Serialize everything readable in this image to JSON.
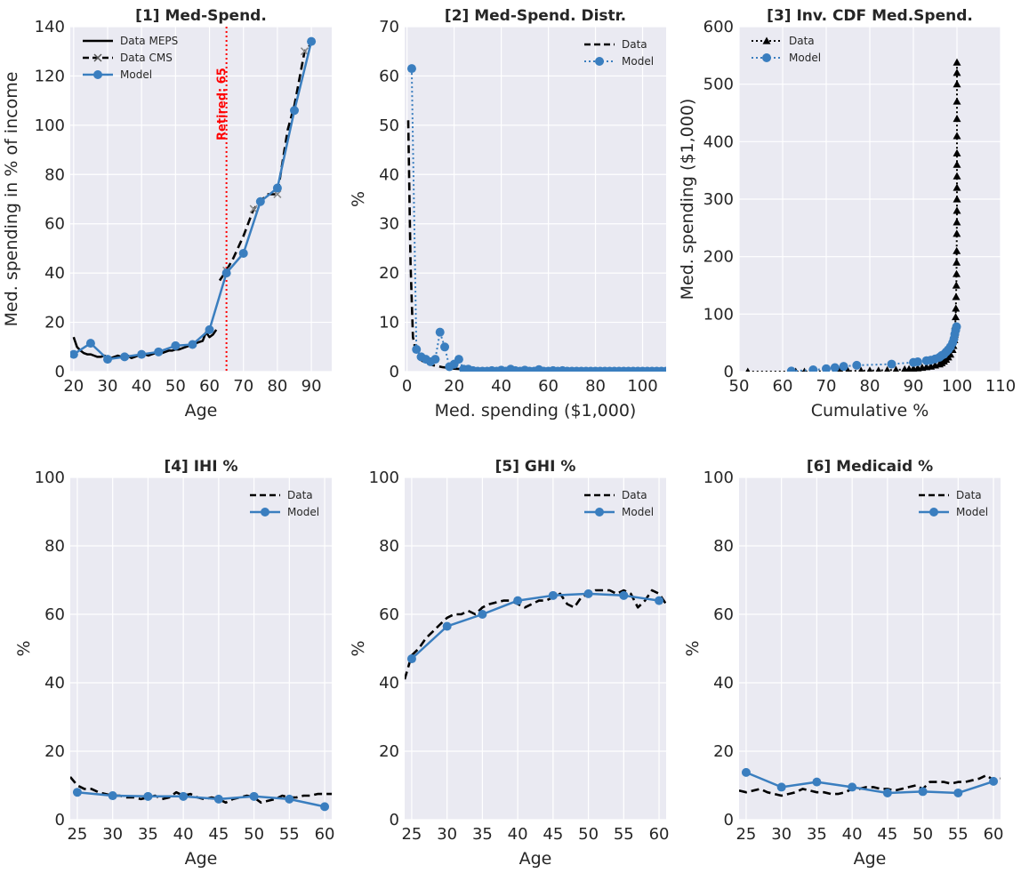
{
  "chart_data": [
    {
      "id": "p1",
      "type": "line",
      "title": "[1] Med-Spend.",
      "xlabel": "Age",
      "ylabel": "Med. spending in % of income",
      "xlim": [
        19,
        96
      ],
      "ylim": [
        0,
        140
      ],
      "xticks": [
        20,
        30,
        40,
        50,
        60,
        70,
        80,
        90
      ],
      "yticks": [
        0,
        20,
        40,
        60,
        80,
        100,
        120,
        140
      ],
      "grid": true,
      "legend_position": "top-left",
      "annotation": {
        "text": "Retired: 65",
        "x": 65
      },
      "series": [
        {
          "name": "Data MEPS",
          "style": "solid",
          "color": "#000000",
          "x": [
            20,
            21,
            22,
            23,
            24,
            25,
            26,
            27,
            28,
            29,
            30,
            31,
            32,
            33,
            34,
            35,
            36,
            37,
            38,
            39,
            40,
            41,
            42,
            43,
            44,
            45,
            46,
            47,
            48,
            49,
            50,
            51,
            52,
            53,
            54,
            55,
            56,
            57,
            58,
            59,
            60,
            61,
            62
          ],
          "y": [
            14,
            10,
            8.5,
            7.5,
            7,
            7,
            6.5,
            6,
            6,
            6.5,
            6,
            5.5,
            6,
            6.5,
            6,
            6,
            6.5,
            5.5,
            6,
            6.5,
            6.5,
            7,
            6.5,
            7,
            7.5,
            7,
            7.5,
            8,
            8.5,
            8.5,
            9,
            9,
            9.5,
            10,
            10.5,
            11,
            11.5,
            12,
            12.5,
            16,
            14,
            15,
            17
          ]
        },
        {
          "name": "Data CMS",
          "style": "dashed",
          "color": "#000000",
          "x": [
            63,
            65,
            67,
            70,
            73,
            75,
            77,
            80,
            83,
            85,
            88,
            90
          ],
          "y": [
            37,
            41,
            46,
            55,
            66,
            69,
            72,
            72,
            98,
            108,
            130,
            133
          ]
        },
        {
          "name": "Model",
          "style": "solid-marker",
          "color": "#3a7ebf",
          "x": [
            20,
            25,
            30,
            35,
            40,
            45,
            50,
            55,
            60,
            65,
            70,
            75,
            80,
            85,
            90
          ],
          "y": [
            7,
            11.5,
            5,
            6,
            7,
            8,
            10.5,
            11,
            17,
            40,
            48,
            69,
            74.5,
            106,
            134
          ]
        }
      ]
    },
    {
      "id": "p2",
      "type": "line",
      "title": "[2] Med-Spend. Distr.",
      "xlabel": "Med. spending ($1,000)",
      "ylabel": "%",
      "xlim": [
        -1,
        110
      ],
      "ylim": [
        0,
        70
      ],
      "xticks": [
        0,
        20,
        40,
        60,
        80,
        100
      ],
      "yticks": [
        0,
        10,
        20,
        30,
        40,
        50,
        60,
        70
      ],
      "grid": true,
      "legend_position": "top-right",
      "series": [
        {
          "name": "Data",
          "style": "dashed",
          "color": "#000000",
          "x": [
            0.5,
            1.5,
            2.5,
            4,
            5.5,
            7,
            9,
            11,
            13,
            15,
            17,
            20,
            23,
            26,
            30,
            40,
            50,
            60,
            80,
            110
          ],
          "y": [
            51,
            22,
            7,
            3.5,
            2.5,
            2,
            1.6,
            1.3,
            1.1,
            0.9,
            0.8,
            0.6,
            0.5,
            0.4,
            0.3,
            0.25,
            0.2,
            0.15,
            0.1,
            0.05
          ]
        },
        {
          "name": "Model",
          "style": "dotted-marker",
          "color": "#3a7ebf",
          "x": [
            2,
            4,
            6,
            8,
            10,
            12,
            14,
            16,
            18,
            20,
            22,
            24,
            26,
            28,
            30,
            32,
            34,
            36,
            38,
            40,
            42,
            44,
            46,
            48,
            50,
            52,
            54,
            56,
            58,
            60,
            62,
            64,
            66,
            68,
            70,
            72,
            74,
            76,
            78,
            80,
            82,
            84,
            86,
            88,
            90,
            92,
            94,
            96,
            98,
            100,
            102,
            104,
            106,
            108,
            110
          ],
          "y": [
            61.5,
            4.5,
            3,
            2.5,
            2,
            2.5,
            8,
            5,
            1,
            1.5,
            2.5,
            0.5,
            0.5,
            0.2,
            0.1,
            0.1,
            0.1,
            0.2,
            0.1,
            0.3,
            0.1,
            0.5,
            0.2,
            0.1,
            0.3,
            0.1,
            0.1,
            0.4,
            0.1,
            0.1,
            0.2,
            0.1,
            0.2,
            0.1,
            0.1,
            0.1,
            0.1,
            0.1,
            0.1,
            0.1,
            0.1,
            0.1,
            0.1,
            0.1,
            0.1,
            0.1,
            0.1,
            0.1,
            0.1,
            0.1,
            0.1,
            0.1,
            0.1,
            0.1,
            0.1
          ]
        }
      ]
    },
    {
      "id": "p3",
      "type": "line",
      "title": "[3] Inv. CDF Med.Spend.",
      "xlabel": "Cumulative %",
      "ylabel": "Med. spending ($1,000)",
      "xlim": [
        50,
        110
      ],
      "ylim": [
        0,
        600
      ],
      "xticks": [
        50,
        60,
        70,
        80,
        90,
        100,
        110
      ],
      "yticks": [
        0,
        100,
        200,
        300,
        400,
        500,
        600
      ],
      "grid": true,
      "legend_position": "top-left",
      "series": [
        {
          "name": "Data",
          "style": "dotted-triangle",
          "color": "#000000",
          "x": [
            52,
            63,
            65,
            67,
            70,
            73,
            75,
            78,
            80,
            82,
            84,
            86,
            88,
            89,
            90,
            91,
            92,
            93,
            94,
            95,
            96,
            96.5,
            97,
            97.5,
            98,
            98.5,
            99,
            99.2,
            99.4,
            99.5,
            99.6,
            99.7,
            99.75,
            99.8,
            99.85,
            99.9,
            99.92,
            99.94,
            99.96,
            99.98,
            100,
            100,
            100,
            100,
            100,
            100,
            100,
            100,
            100,
            100,
            100,
            100
          ],
          "y": [
            0,
            0,
            0,
            0.5,
            0.5,
            1,
            1,
            1.5,
            2,
            2,
            2.5,
            3,
            4,
            4.5,
            5,
            6,
            7,
            8,
            9,
            11,
            13,
            15,
            18,
            21,
            25,
            30,
            38,
            45,
            55,
            65,
            80,
            95,
            110,
            130,
            150,
            170,
            190,
            210,
            240,
            260,
            280,
            300,
            320,
            340,
            360,
            380,
            410,
            440,
            470,
            500,
            520,
            538
          ]
        },
        {
          "name": "Model",
          "style": "dotted-marker",
          "color": "#3a7ebf",
          "x": [
            62,
            67,
            70,
            72,
            74,
            77,
            85,
            90,
            91,
            93,
            94,
            95,
            96,
            96.5,
            97,
            97.5,
            98,
            98.5,
            99,
            99.3,
            99.5,
            99.7,
            99.9
          ],
          "y": [
            1,
            3,
            5,
            7,
            9,
            11,
            13,
            16,
            17,
            19,
            20,
            22,
            25,
            28,
            30,
            34,
            38,
            43,
            50,
            57,
            65,
            72,
            78
          ]
        }
      ]
    },
    {
      "id": "p4",
      "type": "line",
      "title": "[4] IHI %",
      "xlabel": "Age",
      "ylabel": "%",
      "xlim": [
        24,
        61
      ],
      "ylim": [
        0,
        100
      ],
      "xticks": [
        25,
        30,
        35,
        40,
        45,
        50,
        55,
        60
      ],
      "yticks": [
        0,
        20,
        40,
        60,
        80,
        100
      ],
      "grid": true,
      "legend_position": "top-right",
      "series": [
        {
          "name": "Data",
          "style": "dashed",
          "color": "#000000",
          "x": [
            24,
            25,
            26,
            27,
            28,
            29,
            30,
            31,
            32,
            33,
            34,
            35,
            36,
            37,
            38,
            39,
            40,
            41,
            42,
            43,
            44,
            45,
            46,
            47,
            48,
            49,
            50,
            51,
            52,
            53,
            54,
            55,
            56,
            57,
            58,
            59,
            60,
            61
          ],
          "y": [
            12.5,
            10,
            9,
            9,
            8,
            7.5,
            7,
            7,
            6.5,
            6.5,
            6,
            6.5,
            7,
            6,
            6.5,
            8,
            7,
            7.5,
            6.5,
            6,
            6.5,
            6,
            5,
            6,
            6.5,
            7,
            6.5,
            5,
            5.5,
            6,
            7,
            6.5,
            6.5,
            7,
            7,
            7.5,
            7.5,
            7.5
          ]
        },
        {
          "name": "Model",
          "style": "solid-marker",
          "color": "#3a7ebf",
          "x": [
            25,
            30,
            35,
            40,
            45,
            50,
            55,
            60
          ],
          "y": [
            8,
            7,
            6.8,
            6.8,
            6,
            6.8,
            6,
            3.8
          ]
        }
      ]
    },
    {
      "id": "p5",
      "type": "line",
      "title": "[5] GHI %",
      "xlabel": "Age",
      "ylabel": "%",
      "xlim": [
        24,
        61
      ],
      "ylim": [
        0,
        100
      ],
      "xticks": [
        25,
        30,
        35,
        40,
        45,
        50,
        55,
        60
      ],
      "yticks": [
        0,
        20,
        40,
        60,
        80,
        100
      ],
      "grid": true,
      "legend_position": "top-right",
      "series": [
        {
          "name": "Data",
          "style": "dashed",
          "color": "#000000",
          "x": [
            24,
            25,
            26,
            27,
            28,
            29,
            30,
            31,
            32,
            33,
            34,
            35,
            36,
            37,
            38,
            39,
            40,
            41,
            42,
            43,
            44,
            45,
            46,
            47,
            48,
            49,
            50,
            51,
            52,
            53,
            54,
            55,
            56,
            57,
            58,
            59,
            60,
            61
          ],
          "y": [
            41,
            48,
            50,
            53,
            55,
            57,
            59,
            60,
            60,
            61,
            60,
            62,
            63,
            63.5,
            64,
            64,
            63,
            62,
            63,
            64,
            64,
            65,
            66,
            63,
            62,
            65,
            66,
            67,
            67,
            67,
            66,
            67,
            66,
            62,
            64,
            67,
            66,
            63
          ]
        },
        {
          "name": "Model",
          "style": "solid-marker",
          "color": "#3a7ebf",
          "x": [
            25,
            30,
            35,
            40,
            45,
            50,
            55,
            60
          ],
          "y": [
            47,
            56.5,
            60,
            64,
            65.5,
            66,
            65.5,
            64
          ]
        }
      ]
    },
    {
      "id": "p6",
      "type": "line",
      "title": "[6] Medicaid %",
      "xlabel": "Age",
      "ylabel": "%",
      "xlim": [
        24,
        61
      ],
      "ylim": [
        0,
        100
      ],
      "xticks": [
        25,
        30,
        35,
        40,
        45,
        50,
        55,
        60
      ],
      "yticks": [
        0,
        20,
        40,
        60,
        80,
        100
      ],
      "grid": true,
      "legend_position": "top-right",
      "series": [
        {
          "name": "Data",
          "style": "dashed",
          "color": "#000000",
          "x": [
            24,
            25,
            26,
            27,
            28,
            29,
            30,
            31,
            32,
            33,
            34,
            35,
            36,
            37,
            38,
            39,
            40,
            41,
            42,
            43,
            44,
            45,
            46,
            47,
            48,
            49,
            50,
            51,
            52,
            53,
            54,
            55,
            56,
            57,
            58,
            59,
            60,
            61
          ],
          "y": [
            8.5,
            8,
            8.5,
            9,
            8,
            7.5,
            7,
            7.5,
            8,
            9,
            8.5,
            8,
            8,
            7.5,
            7.5,
            8,
            9,
            9,
            9.5,
            9.5,
            9,
            9,
            8.5,
            9,
            9.5,
            10,
            9,
            11,
            11,
            11,
            10.5,
            11,
            11,
            11.5,
            12,
            13,
            11.5,
            12
          ]
        },
        {
          "name": "Model",
          "style": "solid-marker",
          "color": "#3a7ebf",
          "x": [
            25,
            30,
            35,
            40,
            45,
            50,
            55,
            60
          ],
          "y": [
            13.8,
            9.5,
            11,
            9.5,
            7.8,
            8.2,
            7.8,
            11.2
          ]
        }
      ]
    }
  ]
}
